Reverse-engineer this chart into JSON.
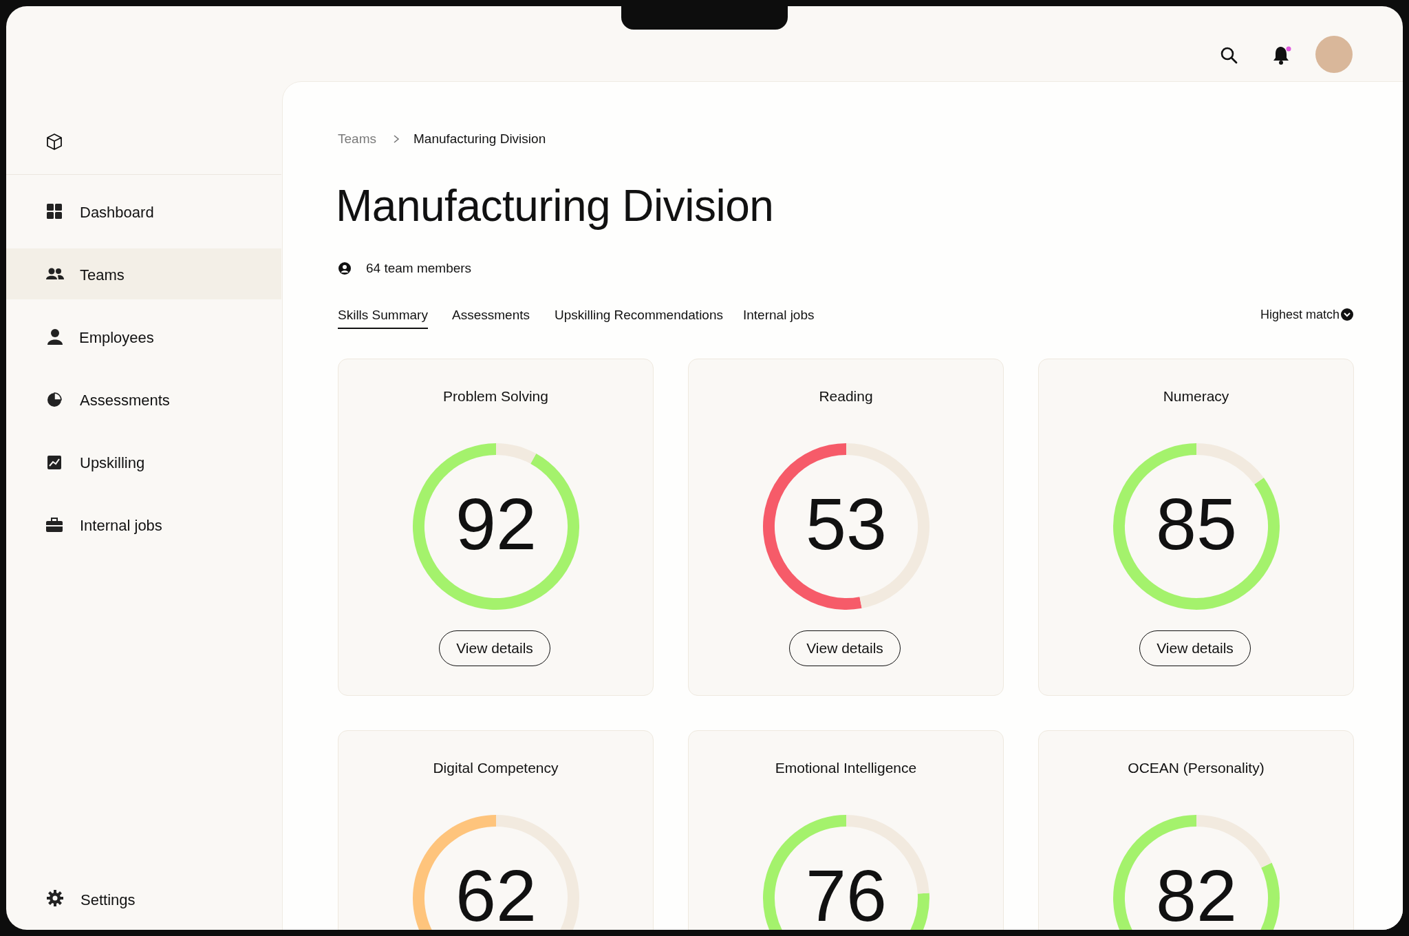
{
  "chart_data": [
    {
      "type": "other",
      "title": "Manufacturing Division",
      "annotations": [
        "Teams",
        "Manufacturing Division",
        "64 team members",
        "Skills Summary",
        "Assessments",
        "Upskilling Recommendations",
        "Internal jobs",
        "Highest match",
        "Dashboard",
        "Teams",
        "Employees",
        "Assessments",
        "Upskilling",
        "Internal jobs",
        "Settings"
      ]
    },
    {
      "type": "donut",
      "title": "Problem Solving",
      "categories": [
        null,
        null
      ],
      "values": [
        92,
        8
      ],
      "colors": [
        "#a4f26c",
        "#f2eadf"
      ],
      "value_labels": [
        "92",
        null
      ],
      "annotations": [
        "View details"
      ]
    },
    {
      "type": "donut",
      "title": "Reading",
      "categories": [
        null,
        null
      ],
      "values": [
        53,
        47
      ],
      "colors": [
        "#f65b69",
        "#f2eadf"
      ],
      "value_labels": [
        "53",
        null
      ],
      "annotations": [
        "View details"
      ]
    },
    {
      "type": "donut",
      "title": "Numeracy",
      "categories": [
        null,
        null
      ],
      "values": [
        85,
        15
      ],
      "colors": [
        "#a4f26c",
        "#f2eadf"
      ],
      "value_labels": [
        "85",
        null
      ],
      "annotations": [
        "View details"
      ]
    },
    {
      "type": "donut",
      "title": "Digital Competency",
      "categories": [
        null,
        null
      ],
      "values": [
        62,
        38
      ],
      "colors": [
        "#fec47c",
        "#f2eadf"
      ],
      "value_labels": [
        "62",
        null
      ]
    },
    {
      "type": "donut",
      "title": "Emotional Intelligence",
      "categories": [
        null,
        null
      ],
      "values": [
        76,
        24
      ],
      "colors": [
        "#a4f26c",
        "#f2eadf"
      ],
      "value_labels": [
        "76",
        null
      ]
    },
    {
      "type": "donut",
      "title": "OCEAN (Personality)",
      "categories": [
        null,
        null
      ],
      "values": [
        82,
        18
      ],
      "colors": [
        "#a4f26c",
        "#f2eadf"
      ],
      "value_labels": [
        "82",
        null
      ]
    }
  ]
}
